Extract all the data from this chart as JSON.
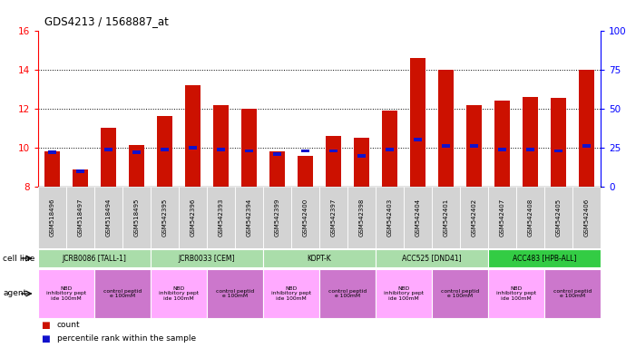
{
  "title": "GDS4213 / 1568887_at",
  "gsm_labels": [
    "GSM518496",
    "GSM518497",
    "GSM518494",
    "GSM518495",
    "GSM542395",
    "GSM542396",
    "GSM542393",
    "GSM542394",
    "GSM542399",
    "GSM542400",
    "GSM542397",
    "GSM542398",
    "GSM542403",
    "GSM542404",
    "GSM542401",
    "GSM542402",
    "GSM542407",
    "GSM542408",
    "GSM542405",
    "GSM542406"
  ],
  "count_values": [
    9.8,
    8.9,
    11.0,
    10.15,
    11.65,
    13.2,
    12.2,
    12.0,
    9.8,
    9.6,
    10.6,
    10.5,
    11.9,
    14.6,
    14.0,
    12.2,
    12.4,
    12.6,
    12.55,
    14.0
  ],
  "percentile_values": [
    22.0,
    10.0,
    24.0,
    22.0,
    24.0,
    25.0,
    24.0,
    23.0,
    21.0,
    23.0,
    23.0,
    20.0,
    24.0,
    30.0,
    26.0,
    26.0,
    24.0,
    24.0,
    23.0,
    26.0
  ],
  "cell_lines": [
    {
      "label": "JCRB0086 [TALL-1]",
      "start": 0,
      "end": 4,
      "color": "#aaddaa"
    },
    {
      "label": "JCRB0033 [CEM]",
      "start": 4,
      "end": 8,
      "color": "#aaddaa"
    },
    {
      "label": "KOPT-K",
      "start": 8,
      "end": 12,
      "color": "#aaddaa"
    },
    {
      "label": "ACC525 [DND41]",
      "start": 12,
      "end": 16,
      "color": "#aaddaa"
    },
    {
      "label": "ACC483 [HPB-ALL]",
      "start": 16,
      "end": 20,
      "color": "#33cc44"
    }
  ],
  "agents": [
    {
      "label": "NBD\ninhibitory pept\nide 100mM",
      "start": 0,
      "end": 2,
      "color": "#ffaaff"
    },
    {
      "label": "control peptid\ne 100mM",
      "start": 2,
      "end": 4,
      "color": "#cc77cc"
    },
    {
      "label": "NBD\ninhibitory pept\nide 100mM",
      "start": 4,
      "end": 6,
      "color": "#ffaaff"
    },
    {
      "label": "control peptid\ne 100mM",
      "start": 6,
      "end": 8,
      "color": "#cc77cc"
    },
    {
      "label": "NBD\ninhibitory pept\nide 100mM",
      "start": 8,
      "end": 10,
      "color": "#ffaaff"
    },
    {
      "label": "control peptid\ne 100mM",
      "start": 10,
      "end": 12,
      "color": "#cc77cc"
    },
    {
      "label": "NBD\ninhibitory pept\nide 100mM",
      "start": 12,
      "end": 14,
      "color": "#ffaaff"
    },
    {
      "label": "control peptid\ne 100mM",
      "start": 14,
      "end": 16,
      "color": "#cc77cc"
    },
    {
      "label": "NBD\ninhibitory pept\nide 100mM",
      "start": 16,
      "end": 18,
      "color": "#ffaaff"
    },
    {
      "label": "control peptid\ne 100mM",
      "start": 18,
      "end": 20,
      "color": "#cc77cc"
    }
  ],
  "ylim_left": [
    8,
    16
  ],
  "yticks_left": [
    8,
    10,
    12,
    14,
    16
  ],
  "ylim_right": [
    0,
    100
  ],
  "yticks_right": [
    0,
    25,
    50,
    75,
    100
  ],
  "bar_color": "#cc1100",
  "percentile_color": "#1111cc",
  "bar_width": 0.55,
  "ybase": 8,
  "grid_lines": [
    10,
    12,
    14
  ]
}
